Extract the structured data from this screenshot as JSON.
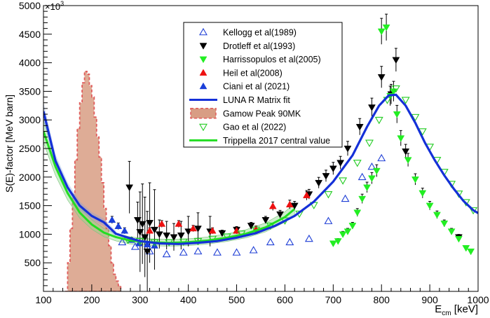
{
  "chart_data": {
    "type": "scatter",
    "title": "",
    "ylabel": "S(E)-factor [MeV barn]",
    "xlabel_main": "E",
    "xlabel_sub": "cm",
    "xlabel_unit": " [keV]",
    "y_exponent_base": "×10",
    "y_exponent_power": "3",
    "xlim": [
      100,
      1000
    ],
    "ylim": [
      0,
      5000
    ],
    "x_ticks": [
      100,
      200,
      300,
      400,
      500,
      600,
      700,
      800,
      900,
      1000
    ],
    "y_ticks": [
      500,
      1000,
      1500,
      2000,
      2500,
      3000,
      3500,
      4000,
      4500,
      5000
    ],
    "legend_position": "top-center",
    "legend": [
      {
        "label": "Kellogg et al(1989)",
        "marker": "triangle-up-open",
        "color": "#1f3fd6"
      },
      {
        "label": "Drotleff et al(1993)",
        "marker": "triangle-down-filled",
        "color": "#000000"
      },
      {
        "label": "Harrissopulos et al(2005)",
        "marker": "triangle-down-filled",
        "color": "#22ee22"
      },
      {
        "label": "Heil et al(2008)",
        "marker": "triangle-up-filled",
        "color": "#ee1111"
      },
      {
        "label": "Ciani et al (2021)",
        "marker": "triangle-up-filled",
        "color": "#1a3fd9"
      },
      {
        "label": "LUNA R Matrix fit",
        "marker": "line",
        "color": "#1430d8"
      },
      {
        "label": "Gamow Peak 90MK",
        "marker": "fill",
        "color": "#d4957a"
      },
      {
        "label": "Gao et al  (2022)",
        "marker": "triangle-down-open",
        "color": "#22cc22"
      },
      {
        "label": "Trippella 2017 central value",
        "marker": "line",
        "color": "#22dd22"
      }
    ],
    "series": [
      {
        "name": "Kellogg et al(1989)",
        "marker": "up-open",
        "color": "#1f3fd6",
        "points": [
          [
            263,
            860
          ],
          [
            290,
            780
          ],
          [
            320,
            700
          ],
          [
            355,
            650
          ],
          [
            390,
            680
          ],
          [
            420,
            700
          ],
          [
            460,
            680
          ],
          [
            500,
            680
          ],
          [
            535,
            720
          ],
          [
            570,
            860
          ],
          [
            610,
            860
          ],
          [
            650,
            920
          ],
          [
            690,
            1230
          ],
          [
            725,
            1620
          ],
          [
            760,
            2000
          ],
          [
            780,
            2180
          ],
          [
            800,
            2330
          ]
        ]
      },
      {
        "name": "Drotleff et al(1993)",
        "marker": "down-filled",
        "color": "#000000",
        "points": [
          [
            278,
            1820
          ],
          [
            295,
            1250
          ],
          [
            300,
            1040
          ],
          [
            305,
            1180
          ],
          [
            310,
            950
          ],
          [
            315,
            700
          ],
          [
            320,
            1200
          ],
          [
            330,
            1080
          ],
          [
            340,
            1000
          ],
          [
            355,
            980
          ],
          [
            370,
            950
          ],
          [
            385,
            980
          ],
          [
            400,
            1050
          ],
          [
            420,
            1100
          ],
          [
            445,
            1050
          ],
          [
            470,
            1020
          ],
          [
            500,
            1080
          ],
          [
            530,
            1150
          ],
          [
            560,
            1250
          ],
          [
            590,
            1350
          ],
          [
            620,
            1500
          ],
          [
            650,
            1700
          ],
          [
            670,
            1900
          ],
          [
            685,
            2020
          ],
          [
            700,
            2150
          ],
          [
            715,
            2250
          ],
          [
            730,
            2500
          ],
          [
            755,
            2880
          ],
          [
            780,
            3220
          ],
          [
            800,
            3750
          ],
          [
            820,
            3450
          ],
          [
            830,
            4050
          ],
          [
            850,
            2450
          ],
          [
            960,
            950
          ]
        ]
      },
      {
        "name": "Harrissopulos et al(2005)",
        "marker": "down-filled",
        "color": "#22ee22",
        "points": [
          [
            700,
            840
          ],
          [
            710,
            880
          ],
          [
            720,
            1000
          ],
          [
            730,
            1050
          ],
          [
            740,
            1150
          ],
          [
            750,
            1380
          ],
          [
            760,
            1620
          ],
          [
            770,
            1820
          ],
          [
            780,
            1980
          ],
          [
            790,
            2110
          ],
          [
            800,
            4550
          ],
          [
            810,
            4620
          ],
          [
            818,
            3420
          ],
          [
            825,
            3500
          ],
          [
            832,
            3100
          ],
          [
            840,
            2680
          ],
          [
            855,
            2300
          ],
          [
            870,
            1960
          ],
          [
            885,
            1720
          ],
          [
            900,
            1500
          ],
          [
            915,
            1340
          ],
          [
            930,
            1190
          ],
          [
            945,
            1050
          ],
          [
            960,
            920
          ],
          [
            975,
            760
          ],
          [
            985,
            700
          ]
        ]
      },
      {
        "name": "Heil et al(2008)",
        "marker": "up-filled",
        "color": "#ee1111",
        "points": [
          [
            320,
            1060
          ],
          [
            345,
            1180
          ],
          [
            380,
            1180
          ],
          [
            410,
            1100
          ],
          [
            450,
            1060
          ],
          [
            500,
            1060
          ],
          [
            540,
            1090
          ],
          [
            575,
            1490
          ],
          [
            610,
            1520
          ],
          [
            645,
            1680
          ]
        ]
      },
      {
        "name": "Ciani et al (2021)",
        "marker": "up-filled",
        "color": "#1a3fd9",
        "points": [
          [
            242,
            1250
          ],
          [
            255,
            1140
          ],
          [
            268,
            1060
          ],
          [
            282,
            900
          ],
          [
            298,
            840
          ],
          [
            315,
            820
          ],
          [
            330,
            800
          ]
        ]
      },
      {
        "name": "Gao et al  (2022)",
        "marker": "down-open",
        "color": "#22cc22",
        "points": [
          [
            275,
            900
          ],
          [
            300,
            880
          ],
          [
            330,
            860
          ],
          [
            360,
            860
          ],
          [
            390,
            870
          ],
          [
            420,
            880
          ],
          [
            450,
            920
          ],
          [
            480,
            960
          ],
          [
            510,
            1010
          ],
          [
            540,
            1080
          ],
          [
            570,
            1150
          ],
          [
            600,
            1240
          ],
          [
            630,
            1360
          ],
          [
            660,
            1510
          ],
          [
            690,
            1700
          ],
          [
            720,
            1940
          ],
          [
            750,
            2250
          ],
          [
            775,
            2600
          ],
          [
            795,
            3000
          ],
          [
            812,
            3350
          ],
          [
            830,
            3550
          ],
          [
            850,
            3350
          ],
          [
            870,
            3050
          ],
          [
            885,
            2800
          ],
          [
            900,
            2530
          ],
          [
            915,
            2300
          ],
          [
            930,
            2090
          ],
          [
            945,
            1880
          ],
          [
            960,
            1710
          ],
          [
            975,
            1560
          ],
          [
            990,
            1420
          ]
        ]
      }
    ],
    "luna_fit": [
      [
        100,
        3150
      ],
      [
        125,
        2280
      ],
      [
        150,
        1820
      ],
      [
        175,
        1500
      ],
      [
        200,
        1320
      ],
      [
        225,
        1210
      ],
      [
        250,
        1010
      ],
      [
        275,
        940
      ],
      [
        300,
        880
      ],
      [
        340,
        840
      ],
      [
        380,
        830
      ],
      [
        420,
        850
      ],
      [
        460,
        880
      ],
      [
        500,
        940
      ],
      [
        540,
        1020
      ],
      [
        580,
        1150
      ],
      [
        620,
        1320
      ],
      [
        660,
        1570
      ],
      [
        700,
        1920
      ],
      [
        740,
        2380
      ],
      [
        770,
        2880
      ],
      [
        795,
        3250
      ],
      [
        815,
        3430
      ],
      [
        830,
        3440
      ],
      [
        850,
        3250
      ],
      [
        870,
        2950
      ],
      [
        890,
        2600
      ],
      [
        910,
        2300
      ],
      [
        930,
        2030
      ],
      [
        950,
        1790
      ],
      [
        970,
        1580
      ],
      [
        990,
        1420
      ],
      [
        1000,
        1370
      ]
    ],
    "trippella_fit": [
      [
        100,
        2800
      ],
      [
        125,
        2180
      ],
      [
        150,
        1720
      ],
      [
        175,
        1380
      ],
      [
        200,
        1170
      ],
      [
        225,
        1030
      ],
      [
        250,
        950
      ],
      [
        280,
        890
      ],
      [
        320,
        860
      ],
      [
        360,
        850
      ],
      [
        400,
        860
      ],
      [
        440,
        890
      ],
      [
        480,
        940
      ],
      [
        520,
        1010
      ],
      [
        560,
        1120
      ],
      [
        600,
        1300
      ],
      [
        620,
        1440
      ]
    ],
    "gamow_peak": [
      [
        145,
        0
      ],
      [
        150,
        500
      ],
      [
        155,
        1100
      ],
      [
        160,
        1700
      ],
      [
        165,
        2300
      ],
      [
        170,
        2850
      ],
      [
        175,
        3300
      ],
      [
        180,
        3650
      ],
      [
        185,
        3850
      ],
      [
        190,
        3800
      ],
      [
        195,
        3600
      ],
      [
        200,
        3400
      ],
      [
        205,
        3050
      ],
      [
        210,
        2700
      ],
      [
        215,
        2350
      ],
      [
        220,
        1900
      ],
      [
        225,
        1450
      ],
      [
        230,
        1100
      ],
      [
        235,
        800
      ],
      [
        240,
        500
      ],
      [
        245,
        300
      ],
      [
        250,
        180
      ],
      [
        255,
        100
      ],
      [
        260,
        0
      ]
    ]
  }
}
